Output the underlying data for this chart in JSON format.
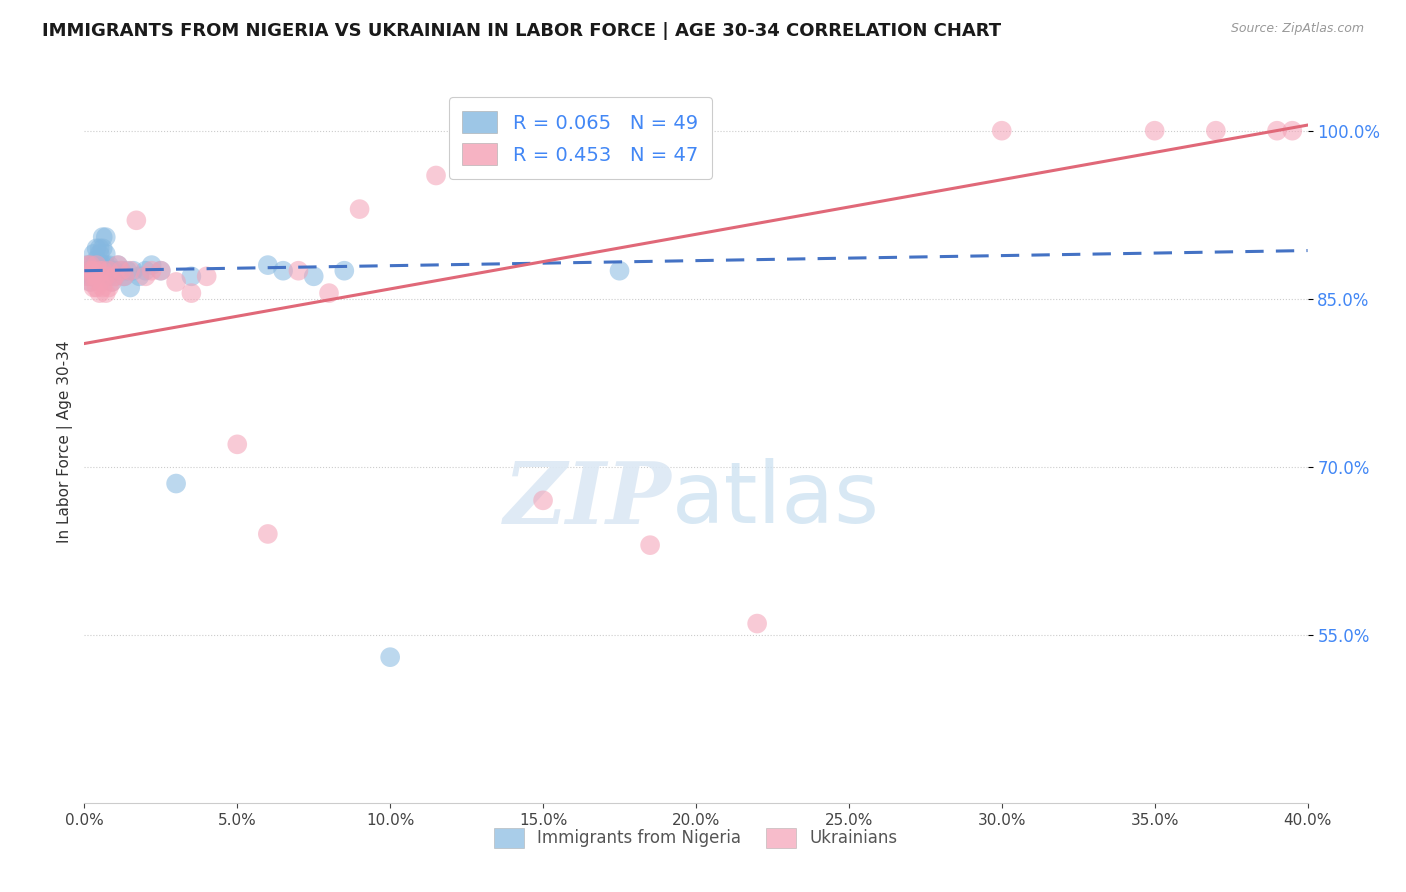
{
  "title": "IMMIGRANTS FROM NIGERIA VS UKRAINIAN IN LABOR FORCE | AGE 30-34 CORRELATION CHART",
  "source": "Source: ZipAtlas.com",
  "ylabel": "In Labor Force | Age 30-34",
  "ytick_vals": [
    1.0,
    0.85,
    0.7,
    0.55
  ],
  "xmin": 0.0,
  "xmax": 0.4,
  "ymin": 0.4,
  "ymax": 1.045,
  "nigeria_R": 0.065,
  "nigeria_N": 49,
  "ukraine_R": 0.453,
  "ukraine_N": 47,
  "nigeria_color": "#85b8e0",
  "ukraine_color": "#f4a0b5",
  "nigeria_line_color": "#4472c4",
  "ukraine_line_color": "#e06878",
  "bg_color": "#ffffff",
  "nigeria_x": [
    0.001,
    0.001,
    0.001,
    0.002,
    0.002,
    0.002,
    0.002,
    0.003,
    0.003,
    0.003,
    0.003,
    0.004,
    0.004,
    0.004,
    0.005,
    0.005,
    0.005,
    0.005,
    0.006,
    0.006,
    0.006,
    0.007,
    0.007,
    0.007,
    0.008,
    0.008,
    0.009,
    0.009,
    0.01,
    0.01,
    0.011,
    0.012,
    0.013,
    0.014,
    0.015,
    0.016,
    0.018,
    0.02,
    0.022,
    0.025,
    0.03,
    0.035,
    0.06,
    0.065,
    0.075,
    0.085,
    0.1,
    0.155,
    0.175
  ],
  "nigeria_y": [
    0.875,
    0.88,
    0.87,
    0.88,
    0.875,
    0.87,
    0.865,
    0.89,
    0.88,
    0.875,
    0.87,
    0.895,
    0.885,
    0.875,
    0.895,
    0.89,
    0.88,
    0.875,
    0.905,
    0.895,
    0.88,
    0.905,
    0.89,
    0.88,
    0.88,
    0.87,
    0.875,
    0.865,
    0.875,
    0.87,
    0.88,
    0.875,
    0.87,
    0.875,
    0.86,
    0.875,
    0.87,
    0.875,
    0.88,
    0.875,
    0.685,
    0.87,
    0.88,
    0.875,
    0.87,
    0.875,
    0.53,
    1.0,
    0.875
  ],
  "ukraine_x": [
    0.001,
    0.001,
    0.002,
    0.002,
    0.002,
    0.003,
    0.003,
    0.003,
    0.004,
    0.004,
    0.004,
    0.005,
    0.005,
    0.005,
    0.006,
    0.006,
    0.007,
    0.007,
    0.008,
    0.008,
    0.009,
    0.01,
    0.011,
    0.012,
    0.013,
    0.015,
    0.017,
    0.02,
    0.022,
    0.025,
    0.03,
    0.035,
    0.04,
    0.05,
    0.06,
    0.07,
    0.08,
    0.09,
    0.115,
    0.15,
    0.185,
    0.22,
    0.3,
    0.35,
    0.37,
    0.39,
    0.395
  ],
  "ukraine_y": [
    0.88,
    0.87,
    0.88,
    0.875,
    0.865,
    0.875,
    0.87,
    0.86,
    0.88,
    0.87,
    0.86,
    0.875,
    0.865,
    0.855,
    0.875,
    0.86,
    0.87,
    0.855,
    0.875,
    0.86,
    0.865,
    0.87,
    0.88,
    0.875,
    0.87,
    0.875,
    0.92,
    0.87,
    0.875,
    0.875,
    0.865,
    0.855,
    0.87,
    0.72,
    0.64,
    0.875,
    0.855,
    0.93,
    0.96,
    0.67,
    0.63,
    0.56,
    1.0,
    1.0,
    1.0,
    1.0,
    1.0
  ],
  "watermark_zip": "ZIP",
  "watermark_atlas": "atlas",
  "legend_nigeria_label": "Immigrants from Nigeria",
  "legend_ukraine_label": "Ukrainians"
}
